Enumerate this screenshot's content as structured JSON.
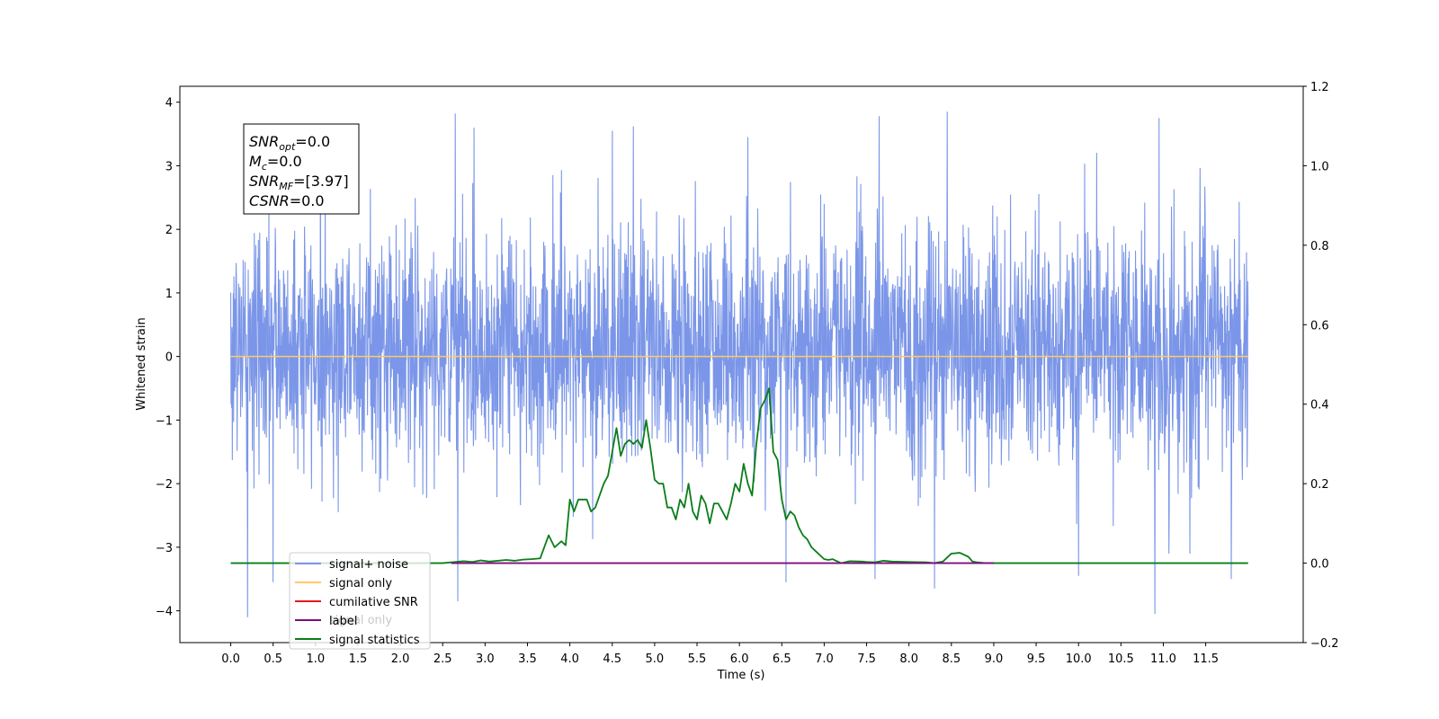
{
  "chart_data": {
    "type": "line",
    "xlabel": "Time (s)",
    "ylabel": "Whitened strain",
    "xlim": [
      -0.6,
      12.65
    ],
    "ylim": [
      -4.5,
      4.25
    ],
    "y2lim": [
      -0.2,
      1.2
    ],
    "x_ticks": [
      "0.0",
      "0.5",
      "1.0",
      "1.5",
      "2.0",
      "2.5",
      "3.0",
      "3.5",
      "4.0",
      "4.5",
      "5.0",
      "5.5",
      "6.0",
      "6.5",
      "7.0",
      "7.5",
      "8.0",
      "8.5",
      "9.0",
      "9.5",
      "10.0",
      "10.5",
      "11.0",
      "11.5"
    ],
    "y_ticks": [
      "4",
      "3",
      "2",
      "1",
      "0",
      "−1",
      "−2",
      "−3",
      "−4"
    ],
    "y2_ticks": [
      "1.2",
      "1.0",
      "0.8",
      "0.6",
      "0.4",
      "0.2",
      "0.0",
      "−0.2"
    ],
    "info_box": {
      "lines": [
        {
          "sym": "SNR",
          "sub": "opt",
          "value": "=0.0"
        },
        {
          "sym": "M",
          "sub": "c",
          "value": "=0.0"
        },
        {
          "sym": "SNR",
          "sub": "MF",
          "value": "=[3.97]"
        },
        {
          "sym": "CSNR",
          "sub": "",
          "value": "=0.0"
        }
      ]
    },
    "legend": {
      "location": "lower-left",
      "entries": [
        {
          "label": "signal+ noise",
          "color": "#7B96E8"
        },
        {
          "label": "signal only",
          "color": "#FFC966"
        },
        {
          "label": "cumilative SNR",
          "color": "#E41A1C"
        },
        {
          "label": "label",
          "color": "#7B0F7B"
        },
        {
          "label": "signal statistics",
          "color": "#0A7D1A"
        }
      ],
      "hidden_text": "signal only"
    },
    "series": [
      {
        "name": "signal+ noise",
        "color": "#7B96E8",
        "axis": "left",
        "x_range": [
          0.0,
          12.0
        ],
        "envelope_typical": [
          -2.0,
          2.3
        ],
        "peak_spikes": [
          {
            "x": 0.2,
            "y": -4.1
          },
          {
            "x": 0.5,
            "y": -3.55
          },
          {
            "x": 2.65,
            "y": 3.82
          },
          {
            "x": 2.68,
            "y": -3.85
          },
          {
            "x": 2.87,
            "y": 3.6
          },
          {
            "x": 4.5,
            "y": 3.55
          },
          {
            "x": 4.75,
            "y": 3.62
          },
          {
            "x": 6.1,
            "y": 3.45
          },
          {
            "x": 6.55,
            "y": -3.55
          },
          {
            "x": 7.6,
            "y": -3.5
          },
          {
            "x": 7.65,
            "y": 3.78
          },
          {
            "x": 8.3,
            "y": -3.65
          },
          {
            "x": 8.45,
            "y": 3.85
          },
          {
            "x": 10.0,
            "y": -3.45
          },
          {
            "x": 10.9,
            "y": -4.05
          },
          {
            "x": 10.95,
            "y": 3.75
          },
          {
            "x": 11.8,
            "y": -3.5
          }
        ]
      },
      {
        "name": "signal only",
        "color": "#FFC966",
        "axis": "left",
        "x": [
          0.0,
          12.0
        ],
        "y": [
          0.0,
          0.0
        ]
      },
      {
        "name": "label",
        "color": "#7B0F7B",
        "axis": "right",
        "x": [
          2.6,
          9.0
        ],
        "y": [
          0.0,
          0.0
        ]
      },
      {
        "name": "signal statistics",
        "color": "#0A7D1A",
        "axis": "right",
        "x": [
          0.0,
          2.5,
          2.75,
          2.85,
          2.95,
          3.05,
          3.25,
          3.35,
          3.45,
          3.55,
          3.65,
          3.75,
          3.82,
          3.9,
          3.95,
          4.0,
          4.05,
          4.1,
          4.2,
          4.25,
          4.3,
          4.35,
          4.4,
          4.45,
          4.5,
          4.55,
          4.6,
          4.65,
          4.7,
          4.75,
          4.8,
          4.85,
          4.9,
          4.95,
          5.0,
          5.05,
          5.1,
          5.15,
          5.2,
          5.25,
          5.3,
          5.35,
          5.4,
          5.45,
          5.5,
          5.55,
          5.6,
          5.65,
          5.7,
          5.75,
          5.8,
          5.85,
          5.9,
          5.95,
          6.0,
          6.05,
          6.1,
          6.15,
          6.2,
          6.25,
          6.3,
          6.35,
          6.4,
          6.45,
          6.5,
          6.55,
          6.6,
          6.65,
          6.7,
          6.75,
          6.8,
          6.85,
          6.9,
          6.95,
          7.0,
          7.05,
          7.1,
          7.2,
          7.3,
          7.45,
          7.5,
          7.6,
          7.7,
          7.8,
          8.0,
          8.2,
          8.3,
          8.4,
          8.5,
          8.6,
          8.7,
          8.75,
          8.8,
          8.9,
          9.0,
          12.0
        ],
        "y": [
          0.0,
          0.0,
          0.005,
          0.003,
          0.007,
          0.004,
          0.008,
          0.006,
          0.009,
          0.01,
          0.012,
          0.07,
          0.04,
          0.055,
          0.045,
          0.16,
          0.13,
          0.16,
          0.16,
          0.13,
          0.14,
          0.17,
          0.2,
          0.22,
          0.28,
          0.34,
          0.27,
          0.3,
          0.31,
          0.3,
          0.31,
          0.29,
          0.36,
          0.29,
          0.21,
          0.2,
          0.2,
          0.14,
          0.14,
          0.11,
          0.16,
          0.14,
          0.2,
          0.13,
          0.11,
          0.17,
          0.15,
          0.1,
          0.15,
          0.15,
          0.13,
          0.11,
          0.15,
          0.2,
          0.18,
          0.25,
          0.2,
          0.17,
          0.3,
          0.39,
          0.41,
          0.44,
          0.28,
          0.26,
          0.16,
          0.11,
          0.13,
          0.12,
          0.09,
          0.07,
          0.06,
          0.04,
          0.03,
          0.02,
          0.01,
          0.008,
          0.01,
          0.0,
          0.005,
          0.004,
          0.003,
          0.002,
          0.006,
          0.004,
          0.003,
          0.002,
          0.0,
          0.004,
          0.024,
          0.026,
          0.016,
          0.004,
          0.002,
          0.0,
          0.0,
          0.0
        ]
      }
    ]
  }
}
